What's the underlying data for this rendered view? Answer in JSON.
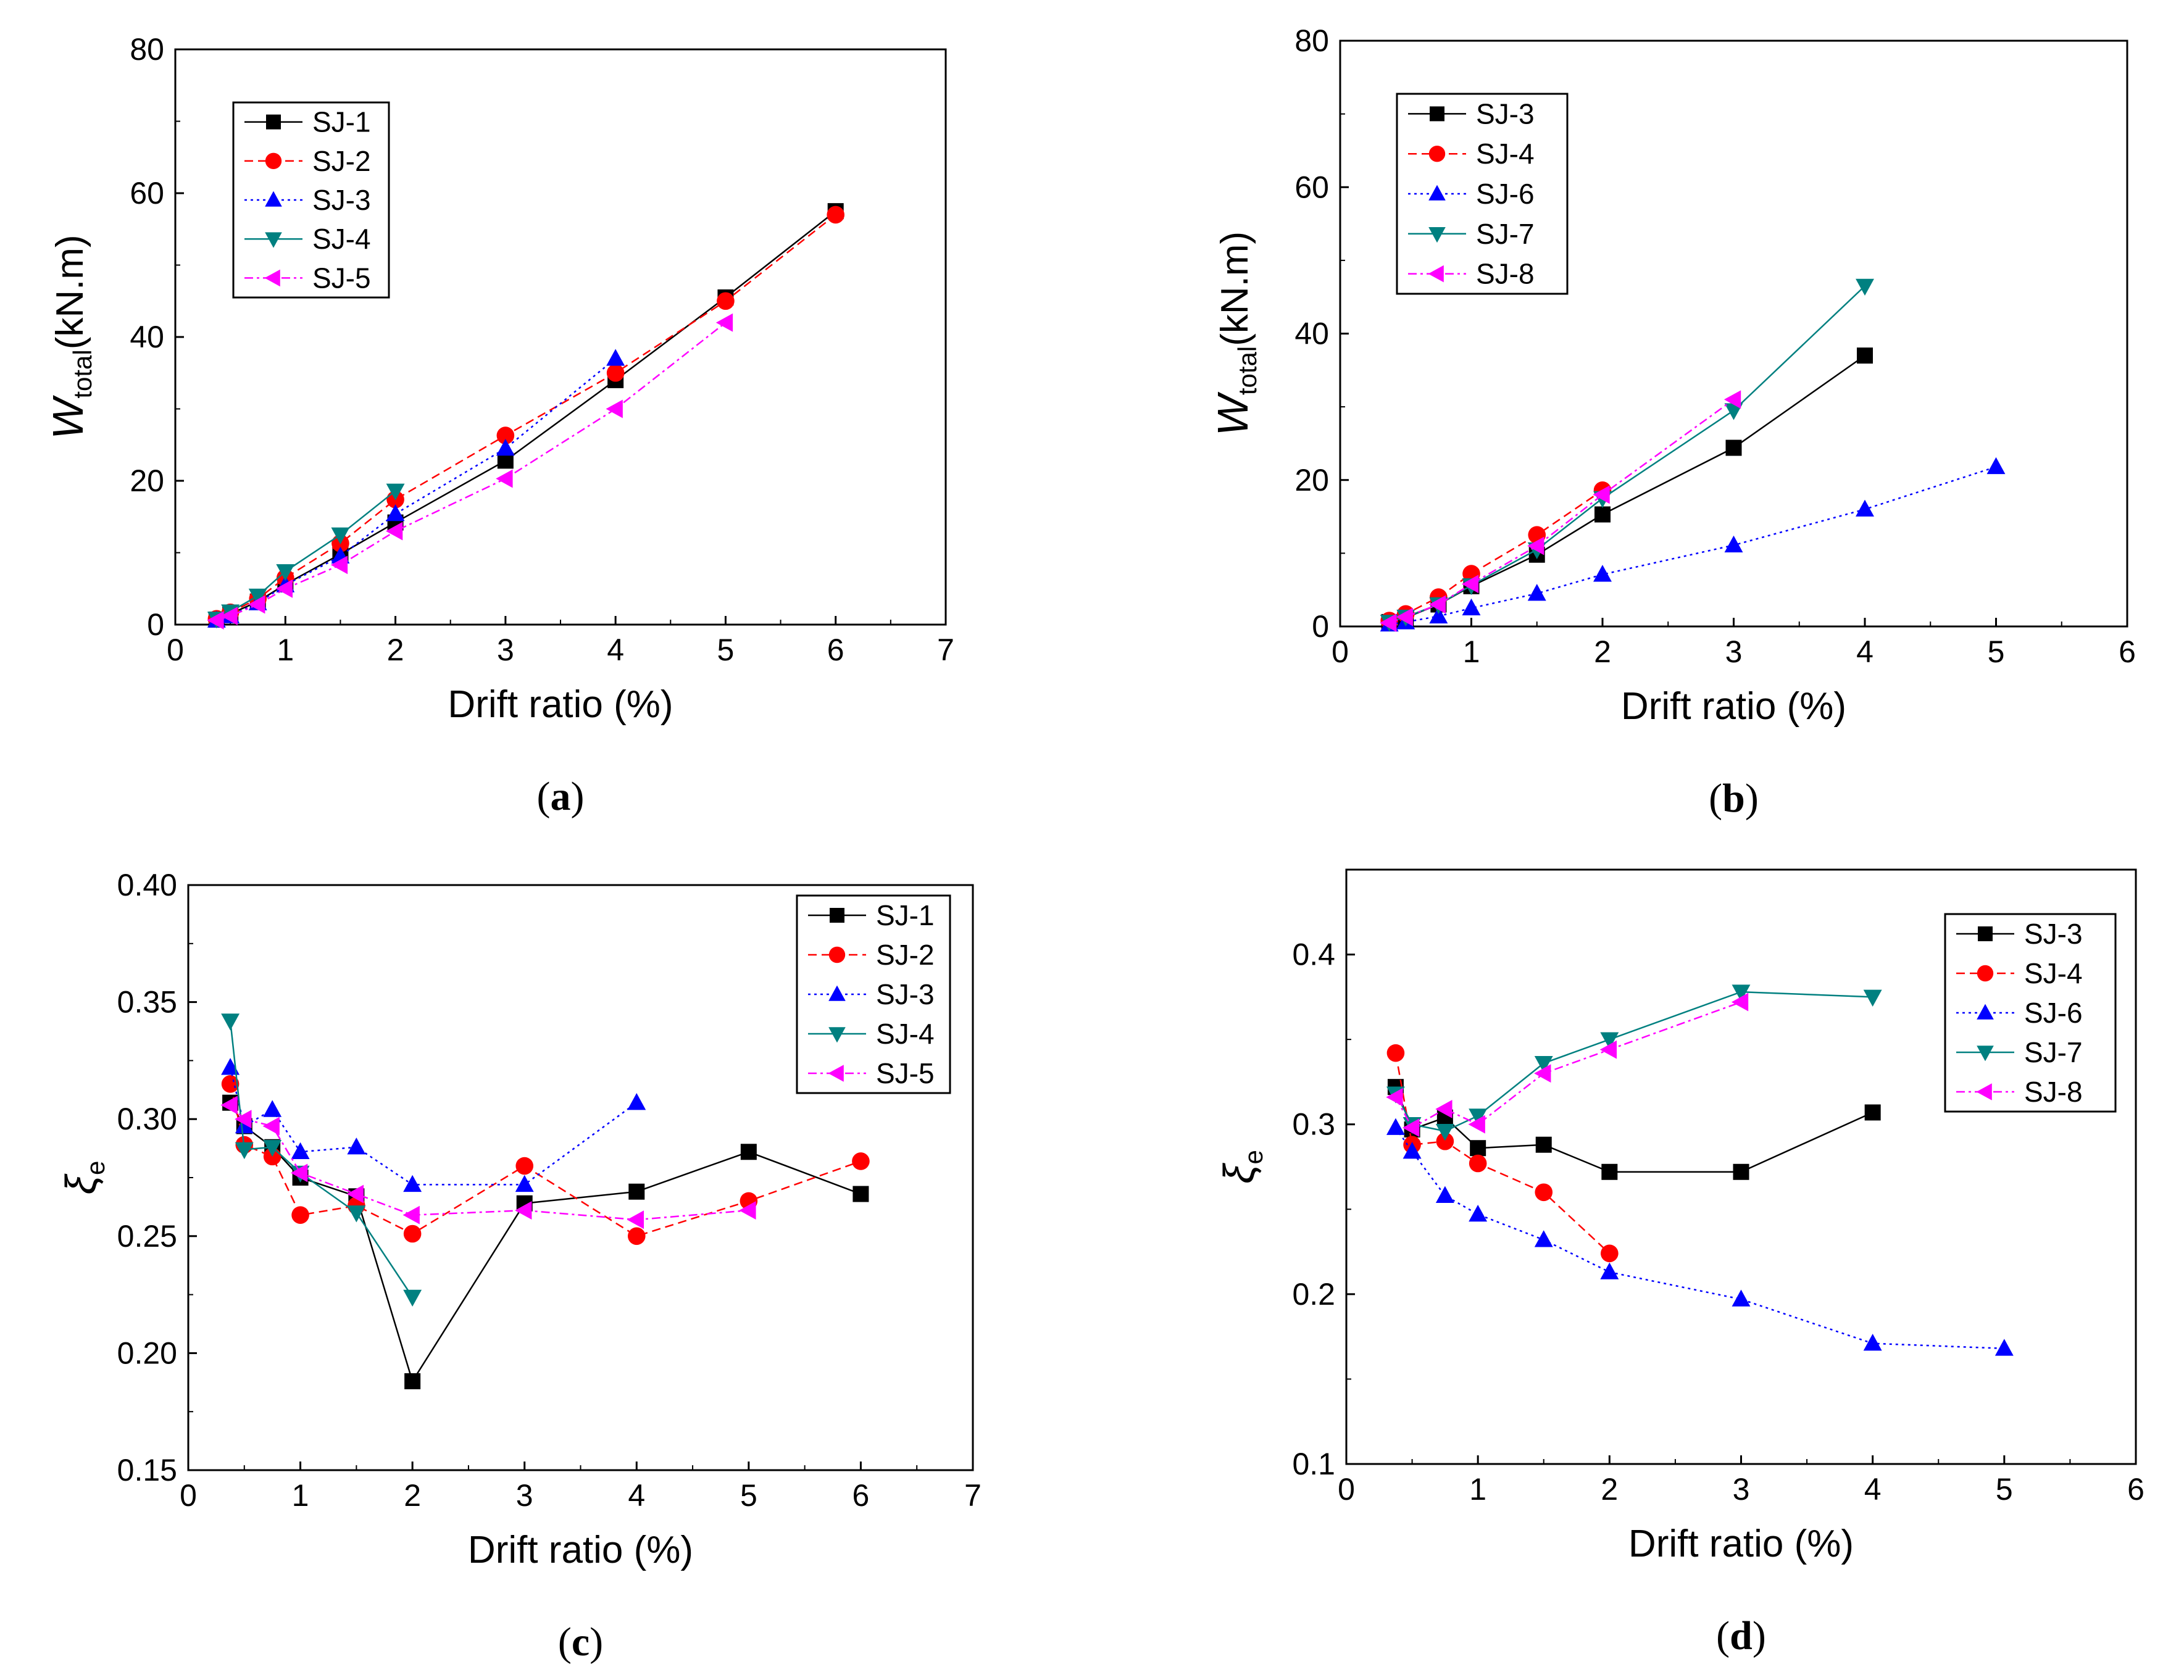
{
  "figure": {
    "panel_labels": [
      "(a)",
      "(b)",
      "(c)",
      "(d)"
    ]
  },
  "chart_data": [
    {
      "id": "a",
      "type": "line",
      "panel_label": "(a)",
      "xlabel": "Drift ratio (%)",
      "ylabel": {
        "main": "W",
        "sub": "total",
        "units": "(kN.m)"
      },
      "xlim": [
        0,
        7
      ],
      "ylim": [
        0,
        80
      ],
      "xticks": [
        0,
        1,
        2,
        3,
        4,
        5,
        6,
        7
      ],
      "yticks": [
        0,
        20,
        40,
        60,
        80
      ],
      "tick_decimals": 0,
      "legend_position": "upper-left",
      "series": [
        {
          "name": "SJ-1",
          "color": "#000000",
          "marker": "square",
          "dash": "solid",
          "x": [
            0.375,
            0.5,
            0.75,
            1,
            1.5,
            2,
            3,
            4,
            5,
            6
          ],
          "y": [
            0.7,
            1.5,
            3.2,
            5.6,
            9.8,
            14.2,
            22.8,
            34.0,
            45.5,
            57.5
          ]
        },
        {
          "name": "SJ-2",
          "color": "#ff0000",
          "marker": "circle",
          "dash": "dashed",
          "x": [
            0.375,
            0.5,
            0.75,
            1,
            1.5,
            2,
            3,
            4,
            5,
            6
          ],
          "y": [
            0.8,
            1.7,
            3.6,
            6.5,
            11.3,
            17.4,
            26.3,
            35.0,
            45.0,
            57.0
          ]
        },
        {
          "name": "SJ-3",
          "color": "#0000ff",
          "marker": "triangle-up",
          "dash": "dotted",
          "x": [
            0.375,
            0.5,
            0.75,
            1,
            1.5,
            2,
            3,
            4
          ],
          "y": [
            0.6,
            1.2,
            3.0,
            5.5,
            9.5,
            15.4,
            24.5,
            37.0
          ]
        },
        {
          "name": "SJ-4",
          "color": "#008080",
          "marker": "triangle-down",
          "dash": "solid",
          "x": [
            0.375,
            0.5,
            0.75,
            1,
            1.5,
            2
          ],
          "y": [
            0.8,
            1.8,
            4.0,
            7.4,
            12.5,
            18.6
          ]
        },
        {
          "name": "SJ-5",
          "color": "#ff00ff",
          "marker": "triangle-left",
          "dash": "dashdot",
          "x": [
            0.375,
            0.5,
            0.75,
            1,
            1.5,
            2,
            3,
            4,
            5
          ],
          "y": [
            0.6,
            1.2,
            2.8,
            5.0,
            8.3,
            13.0,
            20.3,
            30.0,
            42.0
          ]
        }
      ]
    },
    {
      "id": "b",
      "type": "line",
      "panel_label": "(b)",
      "xlabel": "Drift ratio (%)",
      "ylabel": {
        "main": "W",
        "sub": "total",
        "units": "(kN.m)"
      },
      "xlim": [
        0,
        6
      ],
      "ylim": [
        0,
        80
      ],
      "xticks": [
        0,
        1,
        2,
        3,
        4,
        5,
        6
      ],
      "yticks": [
        0,
        20,
        40,
        60,
        80
      ],
      "tick_decimals": 0,
      "legend_position": "upper-left",
      "series": [
        {
          "name": "SJ-3",
          "color": "#000000",
          "marker": "square",
          "dash": "solid",
          "x": [
            0.375,
            0.5,
            0.75,
            1,
            1.5,
            2,
            3,
            4
          ],
          "y": [
            0.6,
            1.2,
            3.0,
            5.5,
            9.8,
            15.3,
            24.4,
            37.0
          ]
        },
        {
          "name": "SJ-4",
          "color": "#ff0000",
          "marker": "circle",
          "dash": "dashed",
          "x": [
            0.375,
            0.5,
            0.75,
            1,
            1.5,
            2
          ],
          "y": [
            0.8,
            1.7,
            4.0,
            7.2,
            12.5,
            18.6
          ]
        },
        {
          "name": "SJ-6",
          "color": "#0000ff",
          "marker": "triangle-up",
          "dash": "dotted",
          "x": [
            0.375,
            0.5,
            0.75,
            1,
            1.5,
            2,
            3,
            4,
            5
          ],
          "y": [
            0.3,
            0.6,
            1.4,
            2.5,
            4.5,
            7.1,
            11.1,
            16.0,
            21.8
          ]
        },
        {
          "name": "SJ-7",
          "color": "#008080",
          "marker": "triangle-down",
          "dash": "solid",
          "x": [
            0.375,
            0.5,
            0.75,
            1,
            1.5,
            2,
            3,
            4
          ],
          "y": [
            0.6,
            1.3,
            3.0,
            5.6,
            10.5,
            17.5,
            29.5,
            46.5
          ]
        },
        {
          "name": "SJ-8",
          "color": "#ff00ff",
          "marker": "triangle-left",
          "dash": "dashdot",
          "x": [
            0.375,
            0.5,
            0.75,
            1,
            1.5,
            2,
            3
          ],
          "y": [
            0.5,
            1.3,
            3.0,
            5.8,
            11.0,
            18.0,
            31.0
          ]
        }
      ]
    },
    {
      "id": "c",
      "type": "line",
      "panel_label": "(c)",
      "xlabel": "Drift ratio (%)",
      "ylabel": {
        "main": "ξ",
        "sub": "e",
        "units": ""
      },
      "xlim": [
        0,
        7
      ],
      "ylim": [
        0.15,
        0.4
      ],
      "xticks": [
        0,
        1,
        2,
        3,
        4,
        5,
        6,
        7
      ],
      "yticks": [
        0.15,
        0.2,
        0.25,
        0.3,
        0.35,
        0.4
      ],
      "tick_decimals": 2,
      "legend_position": "upper-right",
      "series": [
        {
          "name": "SJ-1",
          "color": "#000000",
          "marker": "square",
          "dash": "solid",
          "x": [
            0.375,
            0.5,
            0.75,
            1,
            1.5,
            2,
            3,
            4,
            5,
            6
          ],
          "y": [
            0.307,
            0.297,
            0.288,
            0.275,
            0.267,
            0.188,
            0.264,
            0.269,
            0.286,
            0.268
          ]
        },
        {
          "name": "SJ-2",
          "color": "#ff0000",
          "marker": "circle",
          "dash": "dashed",
          "x": [
            0.375,
            0.5,
            0.75,
            1,
            1.5,
            2,
            3,
            4,
            5,
            6
          ],
          "y": [
            0.315,
            0.289,
            0.284,
            0.259,
            0.263,
            0.251,
            0.28,
            0.25,
            0.265,
            0.282
          ]
        },
        {
          "name": "SJ-3",
          "color": "#0000ff",
          "marker": "triangle-up",
          "dash": "dotted",
          "x": [
            0.375,
            0.5,
            0.75,
            1,
            1.5,
            2,
            3,
            4
          ],
          "y": [
            0.322,
            0.297,
            0.304,
            0.286,
            0.288,
            0.272,
            0.272,
            0.307
          ]
        },
        {
          "name": "SJ-4",
          "color": "#008080",
          "marker": "triangle-down",
          "dash": "solid",
          "x": [
            0.375,
            0.5,
            0.75,
            1,
            1.5,
            2
          ],
          "y": [
            0.342,
            0.287,
            0.288,
            0.277,
            0.26,
            0.224
          ]
        },
        {
          "name": "SJ-5",
          "color": "#ff00ff",
          "marker": "triangle-left",
          "dash": "dashdot",
          "x": [
            0.375,
            0.5,
            0.75,
            1,
            1.5,
            2,
            3,
            4,
            5
          ],
          "y": [
            0.306,
            0.3,
            0.297,
            0.277,
            0.268,
            0.259,
            0.261,
            0.257,
            0.261
          ]
        }
      ]
    },
    {
      "id": "d",
      "type": "line",
      "panel_label": "(d)",
      "xlabel": "Drift ratio (%)",
      "ylabel": {
        "main": "ξ",
        "sub": "e",
        "units": ""
      },
      "xlim": [
        0,
        6
      ],
      "ylim": [
        0.1,
        0.45
      ],
      "xticks": [
        0,
        1,
        2,
        3,
        4,
        5,
        6
      ],
      "yticks": [
        0.1,
        0.2,
        0.3,
        0.4
      ],
      "tick_decimals": 1,
      "legend_position": "upper-right",
      "series": [
        {
          "name": "SJ-3",
          "color": "#000000",
          "marker": "square",
          "dash": "solid",
          "x": [
            0.375,
            0.5,
            0.75,
            1,
            1.5,
            2,
            3,
            4
          ],
          "y": [
            0.322,
            0.297,
            0.304,
            0.286,
            0.288,
            0.272,
            0.272,
            0.307
          ]
        },
        {
          "name": "SJ-4",
          "color": "#ff0000",
          "marker": "circle",
          "dash": "dashed",
          "x": [
            0.375,
            0.5,
            0.75,
            1,
            1.5,
            2
          ],
          "y": [
            0.342,
            0.288,
            0.29,
            0.277,
            0.26,
            0.224
          ]
        },
        {
          "name": "SJ-6",
          "color": "#0000ff",
          "marker": "triangle-up",
          "dash": "dotted",
          "x": [
            0.375,
            0.5,
            0.75,
            1,
            1.5,
            2,
            3,
            4,
            5
          ],
          "y": [
            0.298,
            0.284,
            0.258,
            0.247,
            0.232,
            0.213,
            0.197,
            0.171,
            0.168
          ]
        },
        {
          "name": "SJ-7",
          "color": "#008080",
          "marker": "triangle-down",
          "dash": "solid",
          "x": [
            0.375,
            0.5,
            0.75,
            1,
            1.5,
            2,
            3,
            4
          ],
          "y": [
            0.318,
            0.3,
            0.296,
            0.305,
            0.336,
            0.35,
            0.378,
            0.375
          ]
        },
        {
          "name": "SJ-8",
          "color": "#ff00ff",
          "marker": "triangle-left",
          "dash": "dashdot",
          "x": [
            0.375,
            0.5,
            0.75,
            1,
            1.5,
            2,
            3
          ],
          "y": [
            0.316,
            0.298,
            0.309,
            0.3,
            0.33,
            0.344,
            0.372
          ]
        }
      ]
    }
  ]
}
